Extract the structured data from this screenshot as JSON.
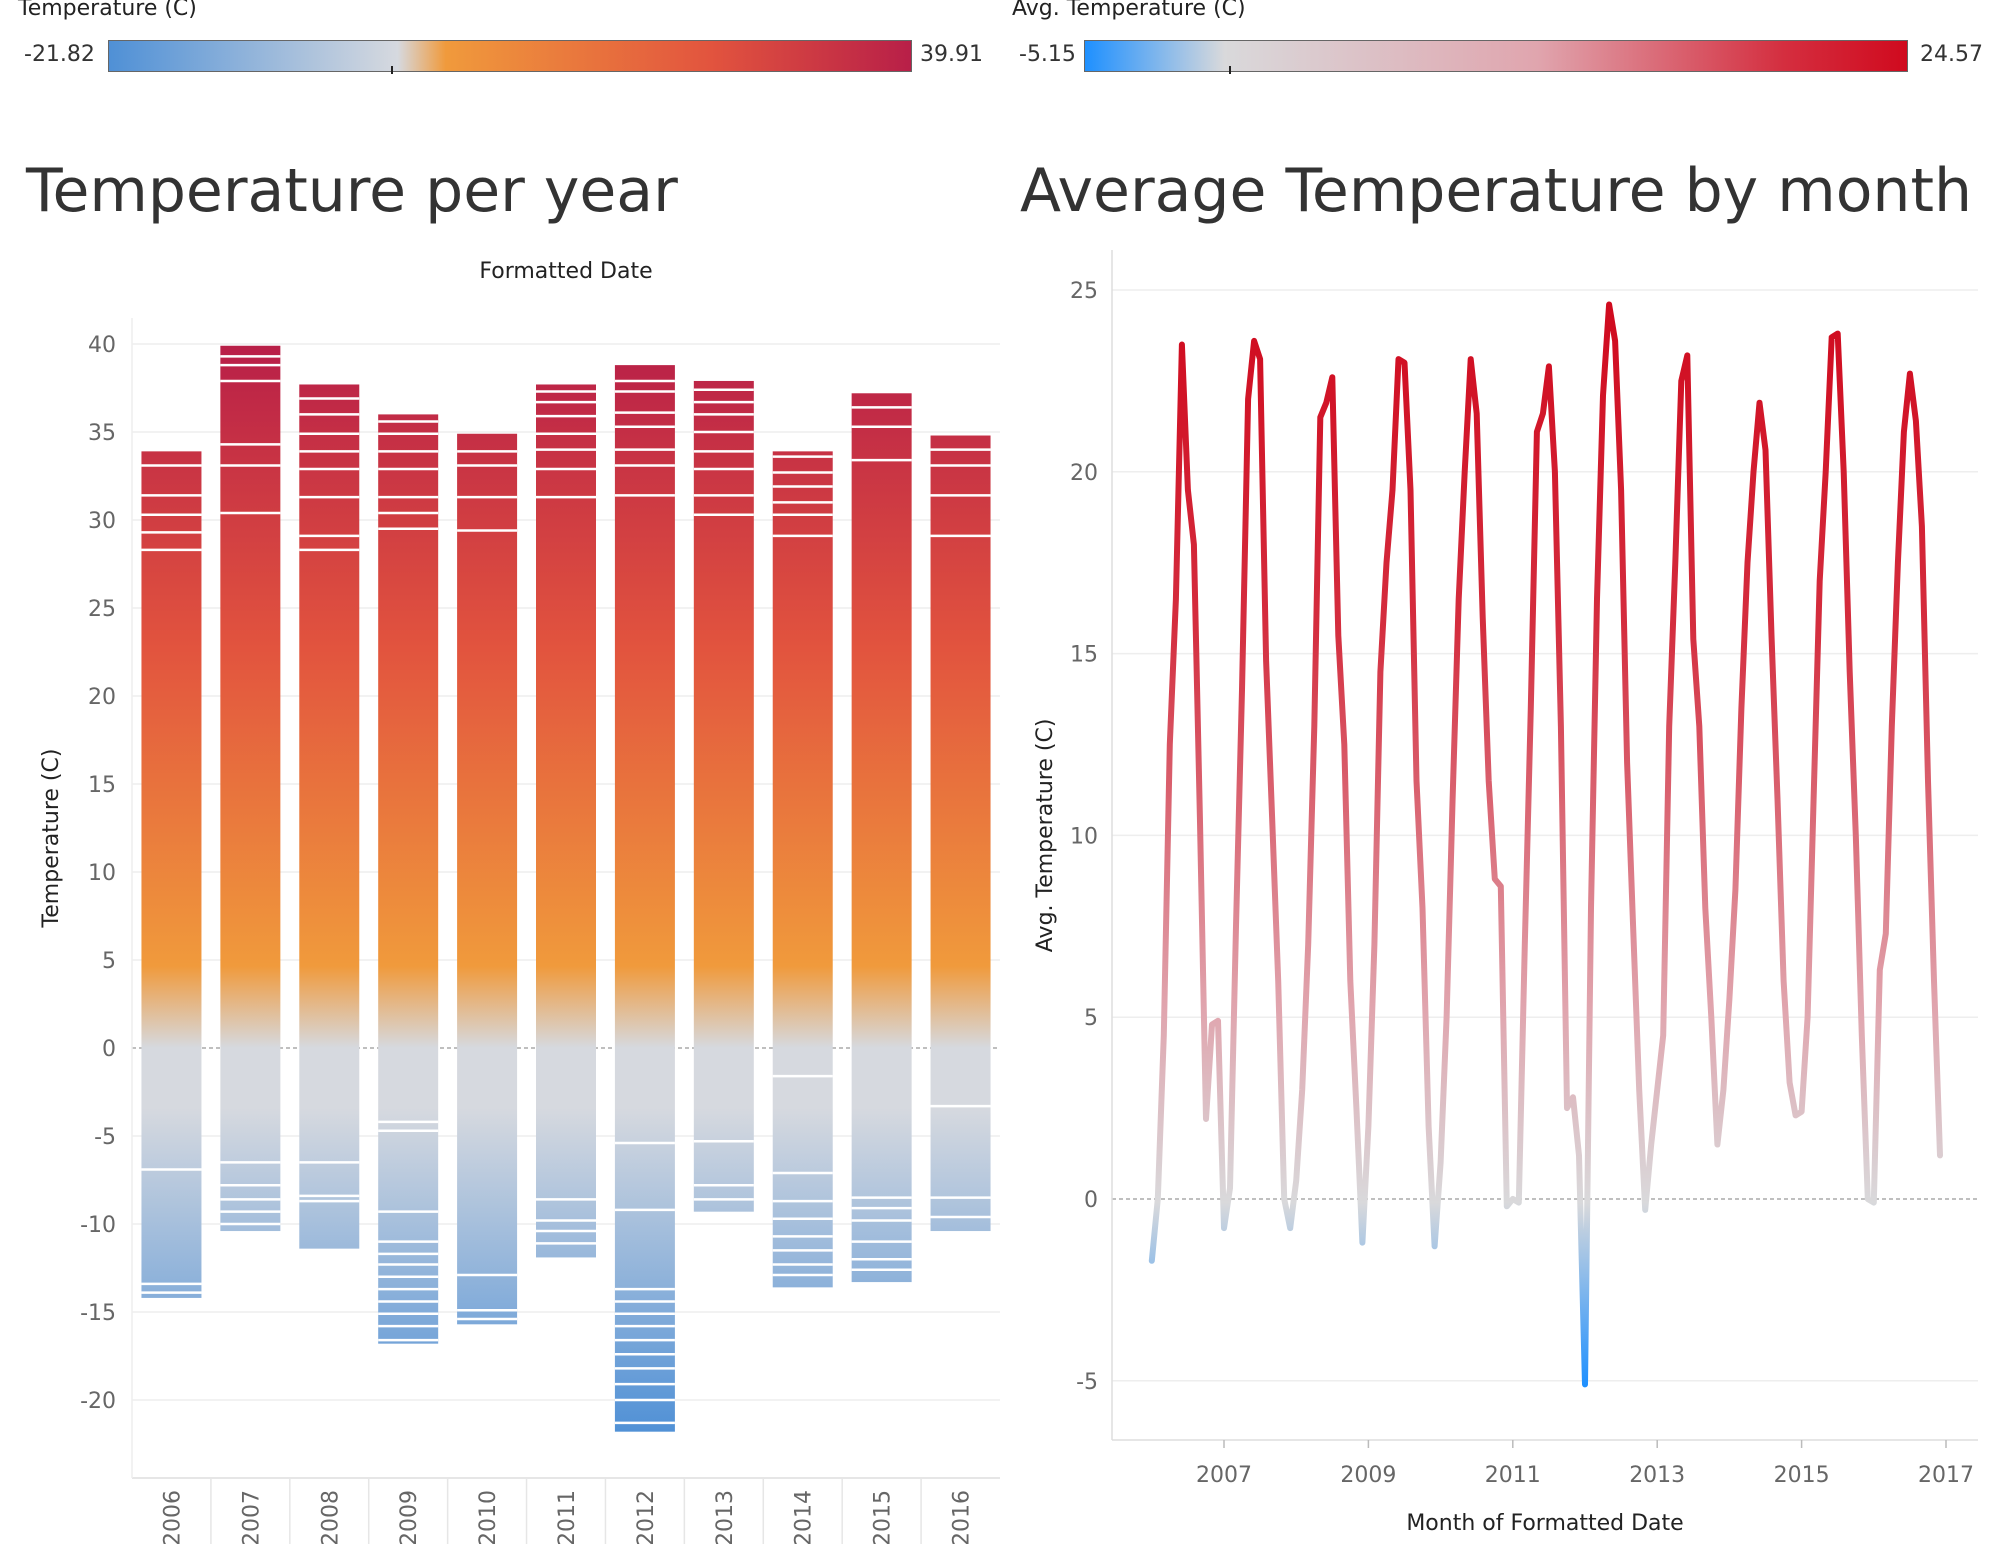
{
  "legends": {
    "left": {
      "title": "Temperature (C)",
      "min": "-21.82",
      "max": "39.91",
      "colors": [
        "#4f90d6",
        "#d6d9df",
        "#f09a3c",
        "#e2543e",
        "#b81f48"
      ]
    },
    "right": {
      "title": "Avg. Temperature (C)",
      "min": "-5.15",
      "max": "24.57",
      "colors": [
        "#1e90ff",
        "#d9d9db",
        "#e0a5ae",
        "#d42e3f",
        "#d00a1e"
      ]
    }
  },
  "chart_data": [
    {
      "type": "bar",
      "title": "Temperature per year",
      "column_header": "Formatted Date",
      "ylabel": "Temperature (C)",
      "xlabel": "",
      "ylim": [
        -23,
        43
      ],
      "yticks": [
        40,
        35,
        30,
        25,
        20,
        15,
        10,
        5,
        0,
        -5,
        -10,
        -15,
        -20
      ],
      "categories": [
        "2006",
        "2007",
        "2008",
        "2009",
        "2010",
        "2011",
        "2012",
        "2013",
        "2014",
        "2015",
        "2016"
      ],
      "series": [
        {
          "name": "",
          "min": [
            -14.2,
            -10.4,
            -11.4,
            -16.8,
            -15.7,
            -11.9,
            -21.8,
            -9.3,
            -13.6,
            -13.3,
            -10.4
          ],
          "max": [
            33.9,
            39.9,
            37.7,
            36.0,
            34.9,
            37.7,
            38.8,
            37.9,
            33.9,
            37.2,
            34.8
          ],
          "splits": [
            [
              33.1,
              31.4,
              30.3,
              29.3,
              28.3,
              -6.9,
              -13.4,
              -13.9
            ],
            [
              39.3,
              38.8,
              37.9,
              34.3,
              33.1,
              30.4,
              -6.5,
              -7.8,
              -8.6,
              -9.3,
              -10.0
            ],
            [
              36.9,
              36.0,
              34.9,
              33.9,
              32.9,
              31.3,
              29.1,
              28.3,
              -6.5,
              -8.4,
              -8.7
            ],
            [
              35.6,
              34.9,
              33.9,
              32.9,
              31.3,
              30.4,
              29.5,
              -4.2,
              -4.7,
              -9.3,
              -11.0,
              -11.7,
              -12.3,
              -13.0,
              -13.7,
              -14.4,
              -15.1,
              -15.8,
              -16.6
            ],
            [
              33.9,
              33.1,
              31.3,
              29.4,
              -12.9,
              -14.9,
              -15.4
            ],
            [
              37.3,
              36.7,
              35.9,
              34.9,
              34.0,
              32.9,
              31.3,
              -8.6,
              -9.8,
              -10.4,
              -11.1
            ],
            [
              37.9,
              37.3,
              36.1,
              35.3,
              34.0,
              33.1,
              31.4,
              -5.4,
              -9.2,
              -13.7,
              -14.4,
              -15.1,
              -15.8,
              -16.6,
              -17.4,
              -18.2,
              -19.1,
              -20.0,
              -21.3
            ],
            [
              37.4,
              36.7,
              36.0,
              35.0,
              33.9,
              32.9,
              31.4,
              30.3,
              -5.3,
              -7.8,
              -8.6
            ],
            [
              33.6,
              32.7,
              31.9,
              31.0,
              30.3,
              29.1,
              -1.6,
              -7.1,
              -8.7,
              -9.7,
              -10.7,
              -11.5,
              -12.3,
              -12.9
            ],
            [
              36.4,
              35.3,
              33.4,
              -8.5,
              -9.1,
              -9.8,
              -11.0,
              -12.0,
              -12.6
            ],
            [
              34.0,
              33.1,
              31.4,
              29.1,
              -3.3,
              -8.5,
              -9.6
            ]
          ]
        }
      ]
    },
    {
      "type": "line",
      "title": "Average Temperature by month",
      "ylabel": "Avg. Temperature (C)",
      "xlabel": "Month of Formatted Date",
      "ylim": [
        -6.5,
        26
      ],
      "xlim": [
        "2006-01",
        "2017-02"
      ],
      "yticks": [
        25,
        20,
        15,
        10,
        5,
        0,
        -5
      ],
      "xticks": [
        "2007",
        "2009",
        "2011",
        "2013",
        "2015",
        "2017"
      ],
      "series": [
        {
          "name": "",
          "x": [
            "2006-01",
            "2006-02",
            "2006-03",
            "2006-04",
            "2006-05",
            "2006-06",
            "2006-07",
            "2006-08",
            "2006-09",
            "2006-10",
            "2006-11",
            "2006-12",
            "2007-01",
            "2007-02",
            "2007-03",
            "2007-04",
            "2007-05",
            "2007-06",
            "2007-07",
            "2007-08",
            "2007-09",
            "2007-10",
            "2007-11",
            "2007-12",
            "2008-01",
            "2008-02",
            "2008-03",
            "2008-04",
            "2008-05",
            "2008-06",
            "2008-07",
            "2008-08",
            "2008-09",
            "2008-10",
            "2008-11",
            "2008-12",
            "2009-01",
            "2009-02",
            "2009-03",
            "2009-04",
            "2009-05",
            "2009-06",
            "2009-07",
            "2009-08",
            "2009-09",
            "2009-10",
            "2009-11",
            "2009-12",
            "2010-01",
            "2010-02",
            "2010-03",
            "2010-04",
            "2010-05",
            "2010-06",
            "2010-07",
            "2010-08",
            "2010-09",
            "2010-10",
            "2010-11",
            "2010-12",
            "2011-01",
            "2011-02",
            "2011-03",
            "2011-04",
            "2011-05",
            "2011-06",
            "2011-07",
            "2011-08",
            "2011-09",
            "2011-10",
            "2011-11",
            "2011-12",
            "2012-01",
            "2012-02",
            "2012-03",
            "2012-04",
            "2012-05",
            "2012-06",
            "2012-07",
            "2012-08",
            "2012-09",
            "2012-10",
            "2012-11",
            "2012-12",
            "2013-01",
            "2013-02",
            "2013-03",
            "2013-04",
            "2013-05",
            "2013-06",
            "2013-07",
            "2013-08",
            "2013-09",
            "2013-10",
            "2013-11",
            "2013-12",
            "2014-01",
            "2014-02",
            "2014-03",
            "2014-04",
            "2014-05",
            "2014-06",
            "2014-07",
            "2014-08",
            "2014-09",
            "2014-10",
            "2014-11",
            "2014-12",
            "2015-01",
            "2015-02",
            "2015-03",
            "2015-04",
            "2015-05",
            "2015-06",
            "2015-07",
            "2015-08",
            "2015-09",
            "2015-10",
            "2015-11",
            "2015-12",
            "2016-01",
            "2016-02",
            "2016-03",
            "2016-04",
            "2016-05",
            "2016-06",
            "2016-07",
            "2016-08",
            "2016-09",
            "2016-10",
            "2016-11",
            "2016-12"
          ],
          "values": [
            -1.7,
            0.0,
            4.5,
            12.5,
            16.5,
            23.5,
            19.5,
            18.0,
            10.5,
            2.2,
            4.8,
            4.9,
            -0.8,
            0.3,
            7.5,
            14.0,
            22.0,
            23.6,
            23.1,
            14.8,
            10.5,
            6.0,
            0.0,
            -0.8,
            0.5,
            3.0,
            7.0,
            13.0,
            21.5,
            21.9,
            22.6,
            15.5,
            12.5,
            6.0,
            2.5,
            -1.2,
            2.0,
            7.0,
            14.5,
            17.5,
            19.5,
            23.1,
            23.0,
            19.5,
            11.5,
            8.0,
            2.0,
            -1.3,
            1.0,
            5.0,
            11.0,
            16.5,
            20.0,
            23.1,
            21.6,
            16.0,
            11.5,
            8.8,
            8.6,
            -0.2,
            0.0,
            -0.1,
            7.0,
            13.5,
            21.1,
            21.6,
            22.9,
            20.0,
            13.0,
            2.5,
            2.8,
            1.2,
            -5.1,
            8.0,
            16.5,
            22.1,
            24.6,
            23.6,
            19.5,
            12.0,
            7.5,
            3.0,
            -0.3,
            1.5,
            3.0,
            4.5,
            13.0,
            17.5,
            22.5,
            23.2,
            15.4,
            13.0,
            8.0,
            5.0,
            1.5,
            3.0,
            5.5,
            8.5,
            13.5,
            17.5,
            20.0,
            21.9,
            20.6,
            15.5,
            11.0,
            6.0,
            3.2,
            2.3,
            2.4,
            5.0,
            11.0,
            17.0,
            20.0,
            23.7,
            23.8,
            20.0,
            14.5,
            10.0,
            4.5,
            0.0,
            -0.1,
            6.3,
            7.3,
            13.0,
            17.5,
            21.1,
            22.7,
            21.4,
            18.5,
            11.5,
            6.0,
            1.2
          ]
        }
      ]
    }
  ]
}
